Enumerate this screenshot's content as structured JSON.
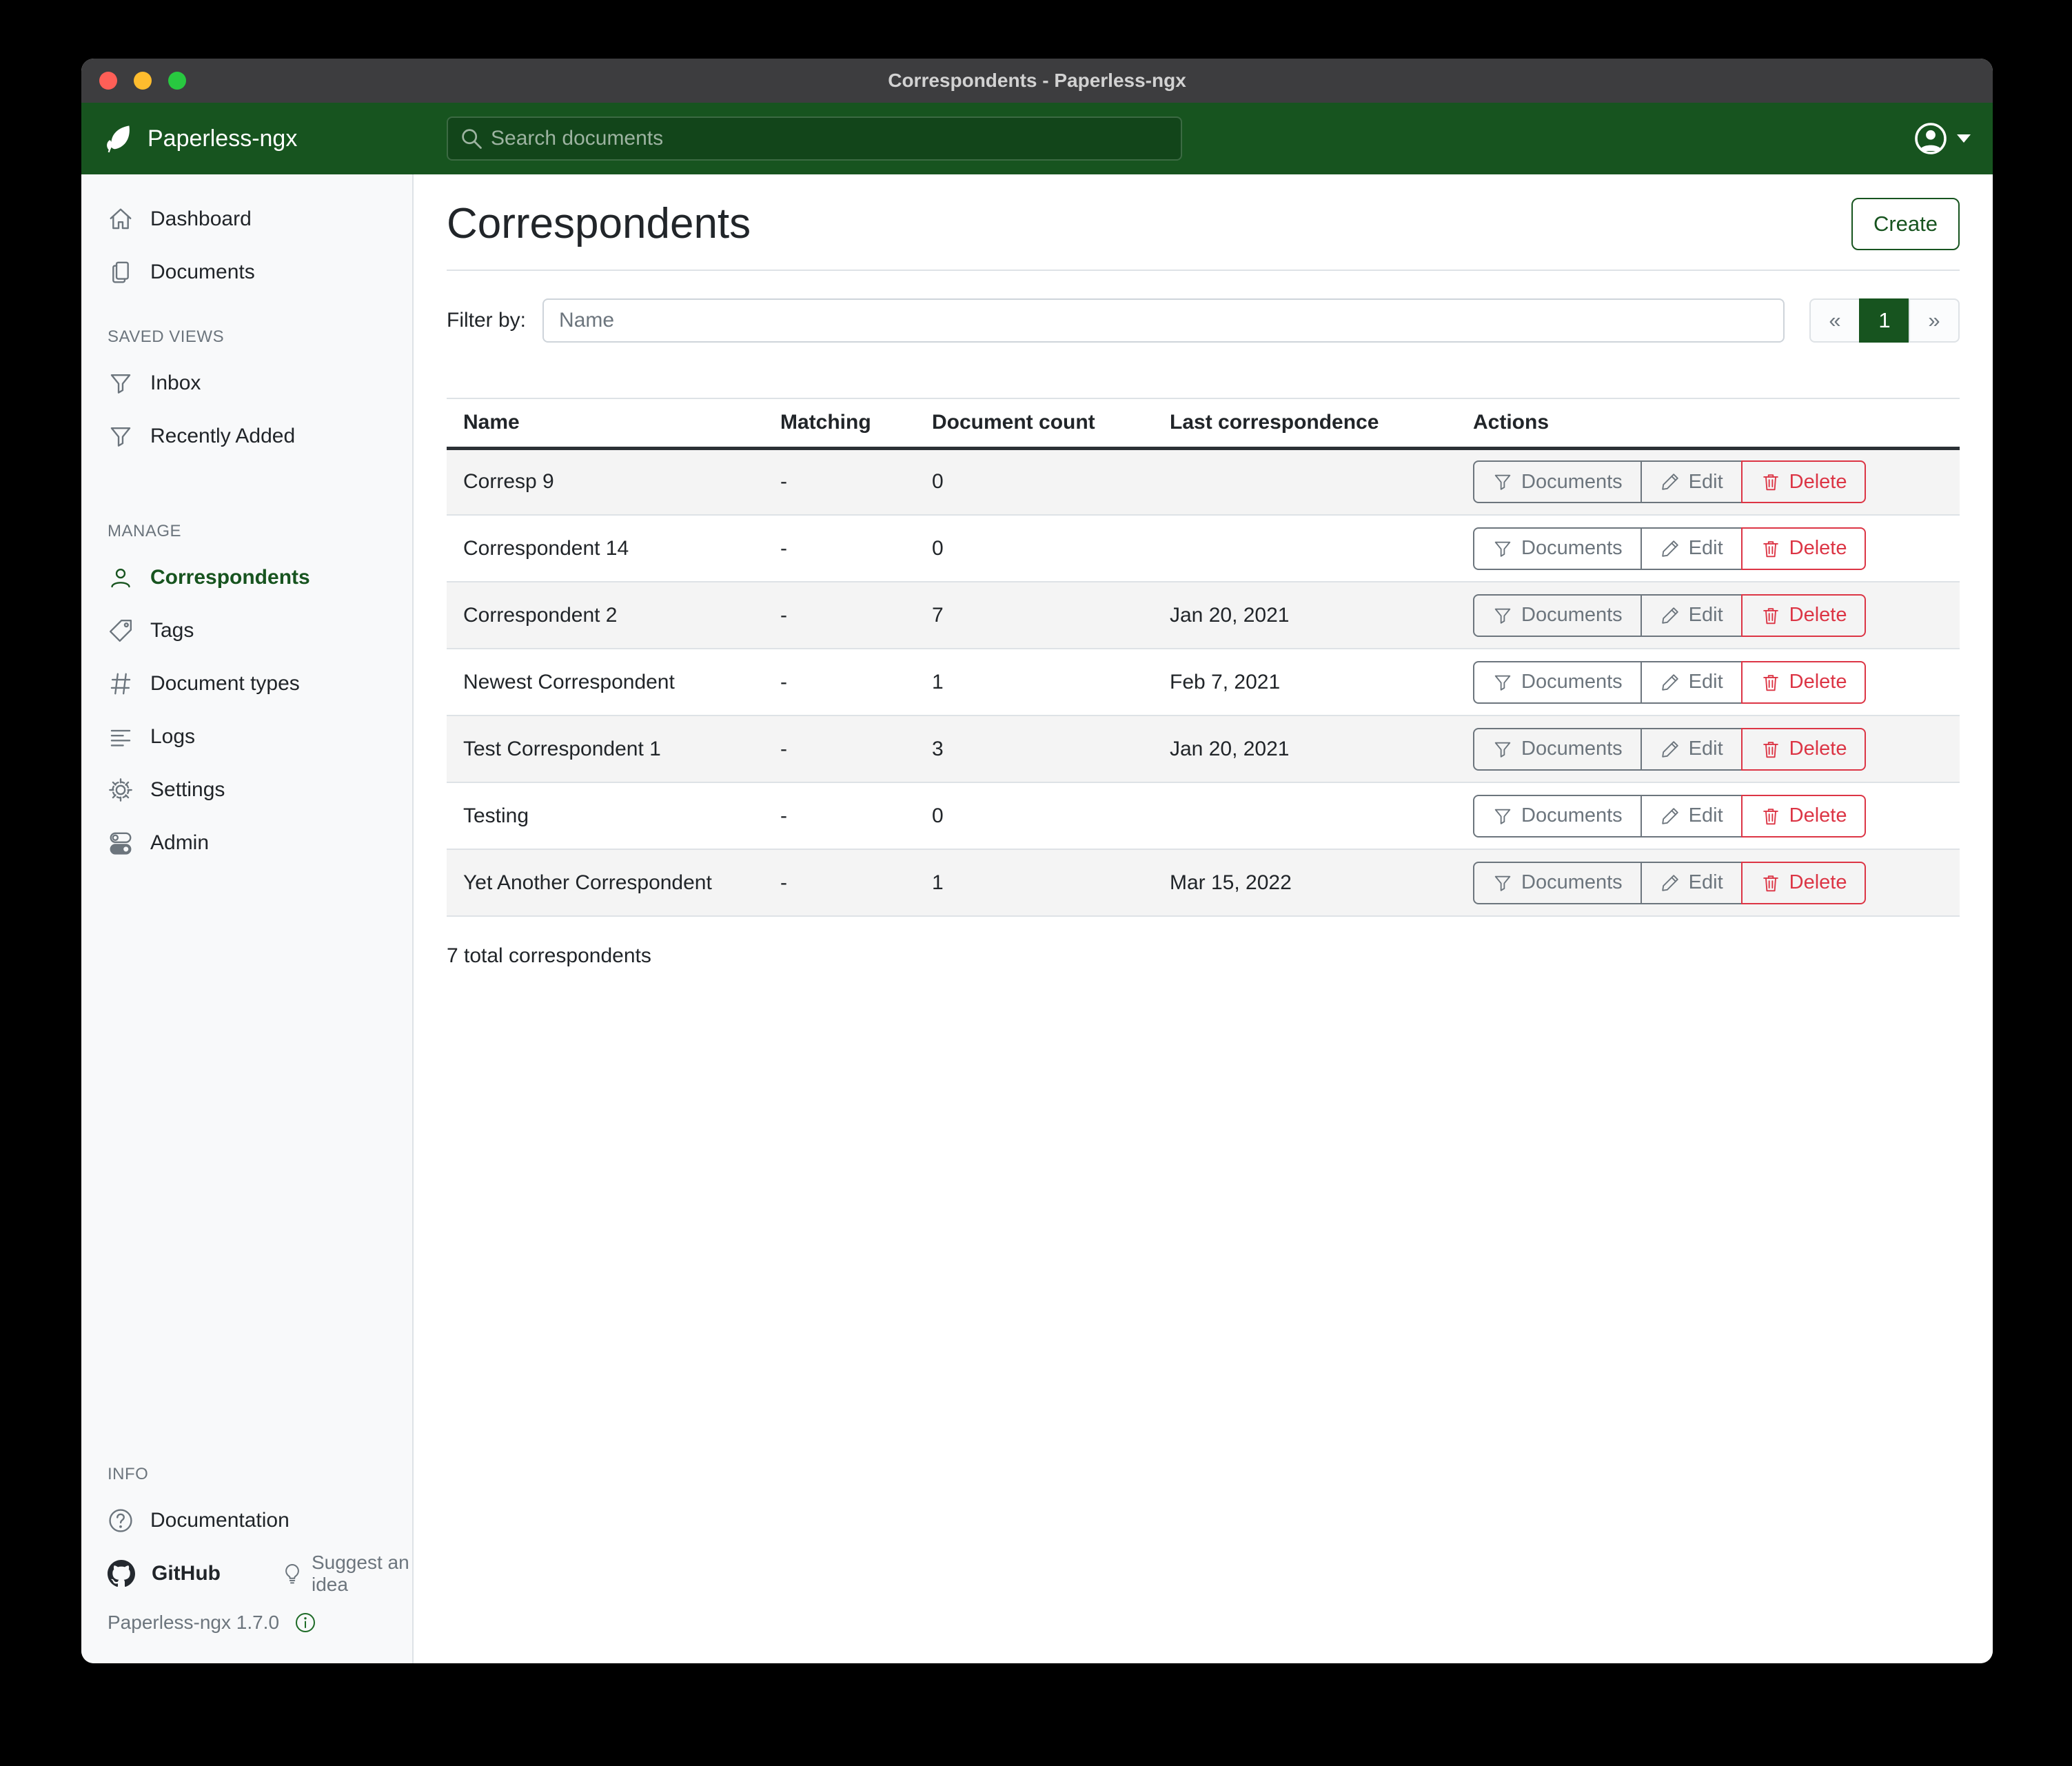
{
  "window": {
    "title": "Correspondents - Paperless-ngx"
  },
  "navbar": {
    "brand": "Paperless-ngx",
    "search_placeholder": "Search documents"
  },
  "sidebar": {
    "primary": [
      {
        "label": "Dashboard",
        "icon": "house"
      },
      {
        "label": "Documents",
        "icon": "files"
      }
    ],
    "saved_views_header": "SAVED VIEWS",
    "saved_views": [
      {
        "label": "Inbox",
        "icon": "funnel"
      },
      {
        "label": "Recently Added",
        "icon": "funnel"
      }
    ],
    "manage_header": "MANAGE",
    "manage": [
      {
        "label": "Correspondents",
        "icon": "person",
        "active": true
      },
      {
        "label": "Tags",
        "icon": "tag"
      },
      {
        "label": "Document types",
        "icon": "hash"
      },
      {
        "label": "Logs",
        "icon": "textlines"
      },
      {
        "label": "Settings",
        "icon": "gear"
      },
      {
        "label": "Admin",
        "icon": "toggles"
      }
    ],
    "info_header": "INFO",
    "documentation_label": "Documentation",
    "github_label": "GitHub",
    "suggest_label": "Suggest an idea",
    "version": "Paperless-ngx 1.7.0"
  },
  "main": {
    "title": "Correspondents",
    "create_label": "Create",
    "filter_label": "Filter by:",
    "filter_placeholder": "Name",
    "pagination": {
      "prev": "«",
      "page": "1",
      "next": "»"
    },
    "table": {
      "headers": [
        "Name",
        "Matching",
        "Document count",
        "Last correspondence",
        "Actions"
      ],
      "action_labels": {
        "documents": "Documents",
        "edit": "Edit",
        "delete": "Delete"
      },
      "rows": [
        {
          "name": "Corresp 9",
          "matching": "-",
          "count": "0",
          "last": ""
        },
        {
          "name": "Correspondent 14",
          "matching": "-",
          "count": "0",
          "last": ""
        },
        {
          "name": "Correspondent 2",
          "matching": "-",
          "count": "7",
          "last": "Jan 20, 2021"
        },
        {
          "name": "Newest Correspondent",
          "matching": "-",
          "count": "1",
          "last": "Feb 7, 2021"
        },
        {
          "name": "Test Correspondent 1",
          "matching": "-",
          "count": "3",
          "last": "Jan 20, 2021"
        },
        {
          "name": "Testing",
          "matching": "-",
          "count": "0",
          "last": ""
        },
        {
          "name": "Yet Another Correspondent",
          "matching": "-",
          "count": "1",
          "last": "Mar 15, 2022"
        }
      ]
    },
    "total": "7 total correspondents"
  },
  "colors": {
    "accent_green": "#17541f",
    "danger_red": "#dc3545",
    "titlebar_gray": "#3d3d3f"
  }
}
